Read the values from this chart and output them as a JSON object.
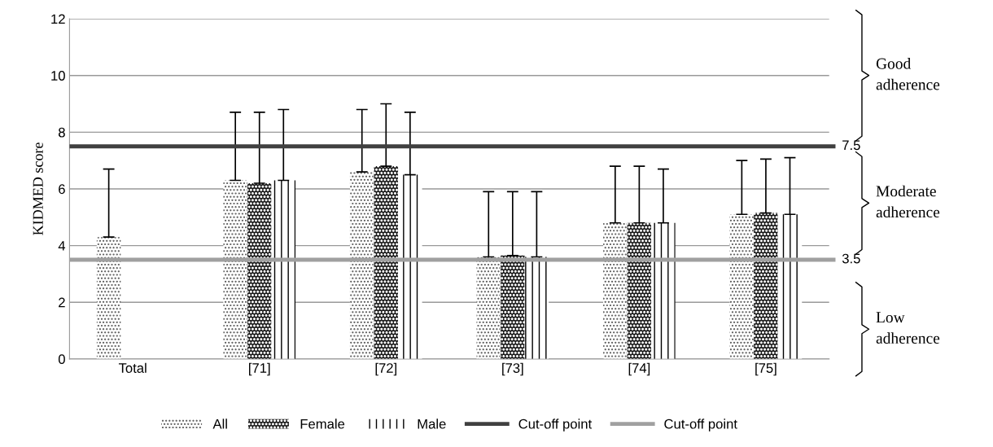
{
  "chart_data": {
    "type": "bar",
    "ylabel": "KIDMED score",
    "categories": [
      "Total",
      "[71]",
      "[72]",
      "[73]",
      "[74]",
      "[75]"
    ],
    "series": [
      {
        "name": "All",
        "color": "#ffffff",
        "values": [
          4.3,
          6.3,
          6.6,
          3.6,
          4.8,
          5.1
        ],
        "errors": [
          [
            4.3,
            6.7
          ],
          [
            6.3,
            8.7
          ],
          [
            6.6,
            8.8
          ],
          [
            3.6,
            5.9
          ],
          [
            4.8,
            6.8
          ],
          [
            5.1,
            7.0
          ]
        ]
      },
      {
        "name": "Female",
        "color": "#1a1a1a",
        "values": [
          0,
          6.2,
          6.8,
          3.65,
          4.8,
          5.15
        ],
        "errors": [
          null,
          [
            6.2,
            8.7
          ],
          [
            6.8,
            9.0
          ],
          [
            3.65,
            5.9
          ],
          [
            4.8,
            6.8
          ],
          [
            5.15,
            7.05
          ]
        ]
      },
      {
        "name": "Male",
        "color": "#ffffff",
        "values": [
          0,
          6.3,
          6.5,
          3.6,
          4.8,
          5.1
        ],
        "errors": [
          null,
          [
            6.3,
            8.8
          ],
          [
            6.5,
            8.7
          ],
          [
            3.6,
            5.9
          ],
          [
            4.8,
            6.7
          ],
          [
            5.1,
            7.1
          ]
        ]
      }
    ],
    "ylim": [
      0,
      12
    ],
    "yticks": [
      0,
      2,
      4,
      6,
      8,
      10,
      12
    ],
    "grid": "y",
    "legend": "bottom",
    "ref_lines": [
      {
        "axis": "y",
        "value": 7.5,
        "label": "Cut-off point",
        "color": "#404040"
      },
      {
        "axis": "y",
        "value": 3.5,
        "label": "Cut-off point",
        "color": "#a0a0a0"
      }
    ],
    "annotations": [
      "7.5",
      "3.5",
      "Good\nadherence",
      "Moderate\nadherence",
      "Low\nadherence"
    ]
  }
}
